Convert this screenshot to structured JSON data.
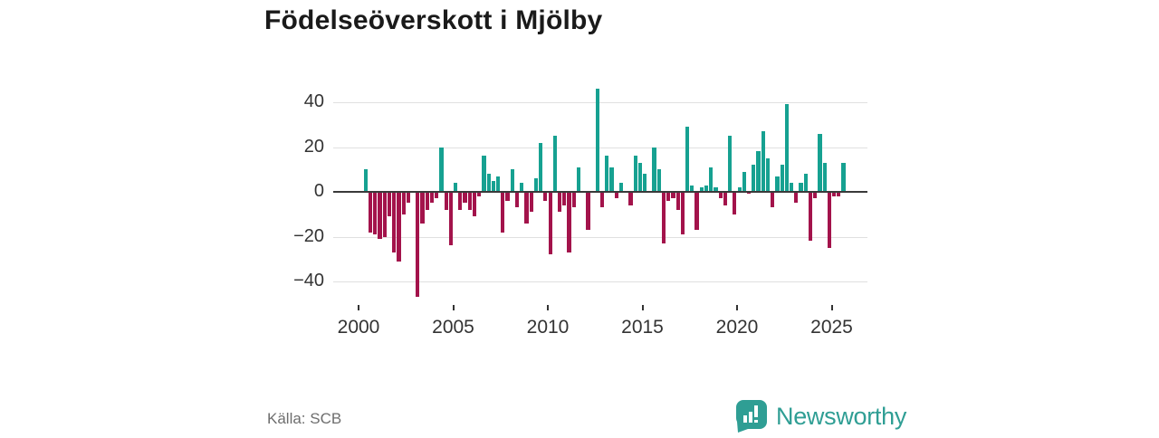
{
  "title": "Födelseöverskott i Mjölby",
  "source_label": "Källa: SCB",
  "logo": {
    "brand": "Newsworthy",
    "icon": "bar-chart-pin-icon"
  },
  "colors": {
    "positive_bar": "#16a191",
    "negative_bar": "#a3134b",
    "title_text": "#1a1a1a",
    "axis_text": "#333333",
    "gridline": "#e0e0e0",
    "zero_line": "#3a3a3a",
    "source_text": "#6e6e6e",
    "brand_teal": "#2f9e94"
  },
  "chart_data": {
    "type": "bar",
    "title": "Födelseöverskott i Mjölby",
    "xlabel": "",
    "ylabel": "",
    "ylim": [
      -49.4,
      49.4
    ],
    "yticks": [
      40,
      20,
      0,
      -20,
      -40
    ],
    "ytick_labels": [
      "40",
      "20",
      "0",
      "−20",
      "−40"
    ],
    "xticks": [
      2000,
      2005,
      2010,
      2015,
      2020,
      2025
    ],
    "xtick_labels": [
      "2000",
      "2005",
      "2010",
      "2015",
      "2020",
      "2025"
    ],
    "grid": true,
    "legend": false,
    "unit": "persons per quarter",
    "series_points": [
      [
        "2000 Q2",
        10
      ],
      [
        "2000 Q3",
        -18
      ],
      [
        "2000 Q4",
        -19
      ],
      [
        "2001 Q1",
        -21
      ],
      [
        "2001 Q2",
        -20
      ],
      [
        "2001 Q3",
        -11
      ],
      [
        "2001 Q4",
        -27
      ],
      [
        "2002 Q1",
        -31
      ],
      [
        "2002 Q2",
        -10
      ],
      [
        "2002 Q3",
        -5
      ],
      [
        "2002 Q4",
        0
      ],
      [
        "2003 Q1",
        -47
      ],
      [
        "2003 Q2",
        -14
      ],
      [
        "2003 Q3",
        -8
      ],
      [
        "2003 Q4",
        -5
      ],
      [
        "2004 Q1",
        -3
      ],
      [
        "2004 Q2",
        20
      ],
      [
        "2004 Q3",
        -8
      ],
      [
        "2004 Q4",
        -24
      ],
      [
        "2005 Q1",
        4
      ],
      [
        "2005 Q2",
        -8
      ],
      [
        "2005 Q3",
        -5
      ],
      [
        "2005 Q4",
        -8
      ],
      [
        "2006 Q1",
        -11
      ],
      [
        "2006 Q2",
        -2
      ],
      [
        "2006 Q3",
        16
      ],
      [
        "2006 Q4",
        8
      ],
      [
        "2007 Q1",
        5
      ],
      [
        "2007 Q2",
        7
      ],
      [
        "2007 Q3",
        -18
      ],
      [
        "2007 Q4",
        -4
      ],
      [
        "2008 Q1",
        10
      ],
      [
        "2008 Q2",
        -7
      ],
      [
        "2008 Q3",
        4
      ],
      [
        "2008 Q4",
        -14
      ],
      [
        "2009 Q1",
        -9
      ],
      [
        "2009 Q2",
        6
      ],
      [
        "2009 Q3",
        22
      ],
      [
        "2009 Q4",
        -4
      ],
      [
        "2010 Q1",
        -28
      ],
      [
        "2010 Q2",
        25
      ],
      [
        "2010 Q3",
        -9
      ],
      [
        "2010 Q4",
        -6
      ],
      [
        "2011 Q1",
        -27
      ],
      [
        "2011 Q2",
        -7
      ],
      [
        "2011 Q3",
        11
      ],
      [
        "2011 Q4",
        0
      ],
      [
        "2012 Q1",
        -17
      ],
      [
        "2012 Q2",
        0
      ],
      [
        "2012 Q3",
        46
      ],
      [
        "2012 Q4",
        -7
      ],
      [
        "2013 Q1",
        16
      ],
      [
        "2013 Q2",
        11
      ],
      [
        "2013 Q3",
        -3
      ],
      [
        "2013 Q4",
        4
      ],
      [
        "2014 Q1",
        0
      ],
      [
        "2014 Q2",
        -6
      ],
      [
        "2014 Q3",
        16
      ],
      [
        "2014 Q4",
        13
      ],
      [
        "2015 Q1",
        8
      ],
      [
        "2015 Q2",
        0
      ],
      [
        "2015 Q3",
        20
      ],
      [
        "2015 Q4",
        10
      ],
      [
        "2016 Q1",
        -23
      ],
      [
        "2016 Q2",
        -4
      ],
      [
        "2016 Q3",
        -3
      ],
      [
        "2016 Q4",
        -8
      ],
      [
        "2017 Q1",
        -19
      ],
      [
        "2017 Q2",
        29
      ],
      [
        "2017 Q3",
        3
      ],
      [
        "2017 Q4",
        -17
      ],
      [
        "2018 Q1",
        2
      ],
      [
        "2018 Q2",
        3
      ],
      [
        "2018 Q3",
        11
      ],
      [
        "2018 Q4",
        2
      ],
      [
        "2019 Q1",
        -3
      ],
      [
        "2019 Q2",
        -6
      ],
      [
        "2019 Q3",
        25
      ],
      [
        "2019 Q4",
        -10
      ],
      [
        "2020 Q1",
        2
      ],
      [
        "2020 Q2",
        9
      ],
      [
        "2020 Q3",
        -1
      ],
      [
        "2020 Q4",
        12
      ],
      [
        "2021 Q1",
        18
      ],
      [
        "2021 Q2",
        27
      ],
      [
        "2021 Q3",
        15
      ],
      [
        "2021 Q4",
        -7
      ],
      [
        "2022 Q1",
        7
      ],
      [
        "2022 Q2",
        12
      ],
      [
        "2022 Q3",
        39
      ],
      [
        "2022 Q4",
        4
      ],
      [
        "2023 Q1",
        -5
      ],
      [
        "2023 Q2",
        4
      ],
      [
        "2023 Q3",
        8
      ],
      [
        "2023 Q4",
        -22
      ],
      [
        "2024 Q1",
        -3
      ],
      [
        "2024 Q2",
        26
      ],
      [
        "2024 Q3",
        13
      ],
      [
        "2024 Q4",
        -25
      ],
      [
        "2025 Q1",
        -2
      ],
      [
        "2025 Q2",
        -2
      ],
      [
        "2025 Q3",
        13
      ]
    ]
  }
}
